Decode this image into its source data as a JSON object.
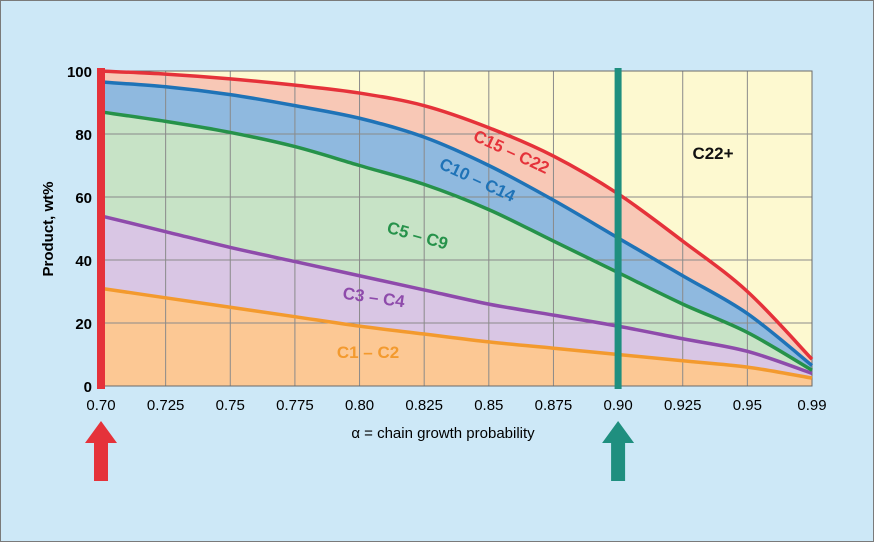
{
  "chart_data": {
    "type": "area",
    "title": "",
    "xlabel": "α = chain growth probability",
    "ylabel": "Product, wt%",
    "x": [
      0.7,
      0.725,
      0.75,
      0.775,
      0.8,
      0.825,
      0.85,
      0.875,
      0.9,
      0.925,
      0.95,
      0.99
    ],
    "x_ticks": [
      "0.70",
      "0.725",
      "0.75",
      "0.775",
      "0.80",
      "0.825",
      "0.85",
      "0.875",
      "0.90",
      "0.925",
      "0.95",
      "0.99"
    ],
    "y_ticks": [
      "0",
      "20",
      "40",
      "60",
      "80",
      "100"
    ],
    "ylim": [
      0,
      100
    ],
    "grid": true,
    "boundaries": [
      {
        "name": "C1 – C2",
        "color": "#f39a2e",
        "fill": "#fcc894",
        "values": [
          31,
          28,
          25,
          22,
          19,
          16.5,
          14,
          12,
          10,
          8,
          6,
          2.5
        ]
      },
      {
        "name": "C3 – C4",
        "color": "#8e4bab",
        "fill": "#d9c6e4",
        "values": [
          54,
          49,
          44,
          39.5,
          35,
          30.5,
          26,
          22.5,
          19,
          15,
          11,
          4
        ]
      },
      {
        "name": "C5 – C9",
        "color": "#26924a",
        "fill": "#c7e3c6",
        "values": [
          87,
          84,
          80.5,
          76,
          70,
          64,
          56,
          46,
          36,
          26,
          17,
          5
        ]
      },
      {
        "name": "C10 – C14",
        "color": "#1f73b7",
        "fill": "#8fb9df",
        "values": [
          96.5,
          95,
          92.5,
          89,
          85,
          79,
          70,
          59,
          47,
          35,
          23,
          6.5
        ]
      },
      {
        "name": "C15 – C22",
        "color": "#e5323a",
        "fill": "#f8c8b6",
        "values": [
          100,
          99,
          97.5,
          95.5,
          93,
          89,
          82,
          73,
          61,
          46,
          30,
          8.5
        ]
      }
    ],
    "top_region": {
      "name": "C22+",
      "fill": "#fdf9d0"
    },
    "markers": [
      {
        "x": 0.7,
        "color": "#e5323a"
      },
      {
        "x": 0.9,
        "color": "#1f8f7f"
      }
    ]
  }
}
